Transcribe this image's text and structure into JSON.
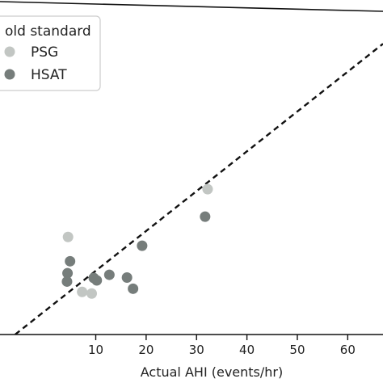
{
  "chart_data": {
    "type": "scatter",
    "title": "",
    "xlabel": "Actual AHI (events/hr)",
    "ylabel": "",
    "xlim": [
      -9,
      67
    ],
    "ylim": [
      -6,
      78
    ],
    "xticks": [
      10,
      20,
      30,
      40,
      50,
      60
    ],
    "grid": false,
    "legend": {
      "title": "Gold standard",
      "title_visible": "old standard",
      "placement": "top-left"
    },
    "colors": {
      "PSG": "#c2c6c3",
      "HSAT": "#767d7b",
      "reference_line": "#111111"
    },
    "series": [
      {
        "name": "PSG",
        "points": [
          {
            "x": 32.2,
            "y": 30.5
          },
          {
            "x": 4.5,
            "y": 18.5
          },
          {
            "x": 7.3,
            "y": 4.7
          },
          {
            "x": 9.2,
            "y": 4.3
          }
        ]
      },
      {
        "name": "HSAT",
        "points": [
          {
            "x": 31.7,
            "y": 23.6
          },
          {
            "x": 19.2,
            "y": 16.3
          },
          {
            "x": 4.9,
            "y": 12.4
          },
          {
            "x": 4.4,
            "y": 9.4
          },
          {
            "x": 9.6,
            "y": 8.2
          },
          {
            "x": 10.2,
            "y": 7.6
          },
          {
            "x": 12.7,
            "y": 9.0
          },
          {
            "x": 16.2,
            "y": 8.3
          },
          {
            "x": 17.4,
            "y": 5.5
          },
          {
            "x": 4.3,
            "y": 7.3
          }
        ]
      }
    ],
    "reference_line": {
      "style": "dashed",
      "from": {
        "x": -9,
        "y": -9
      },
      "to": {
        "x": 67,
        "y": 67
      }
    }
  }
}
